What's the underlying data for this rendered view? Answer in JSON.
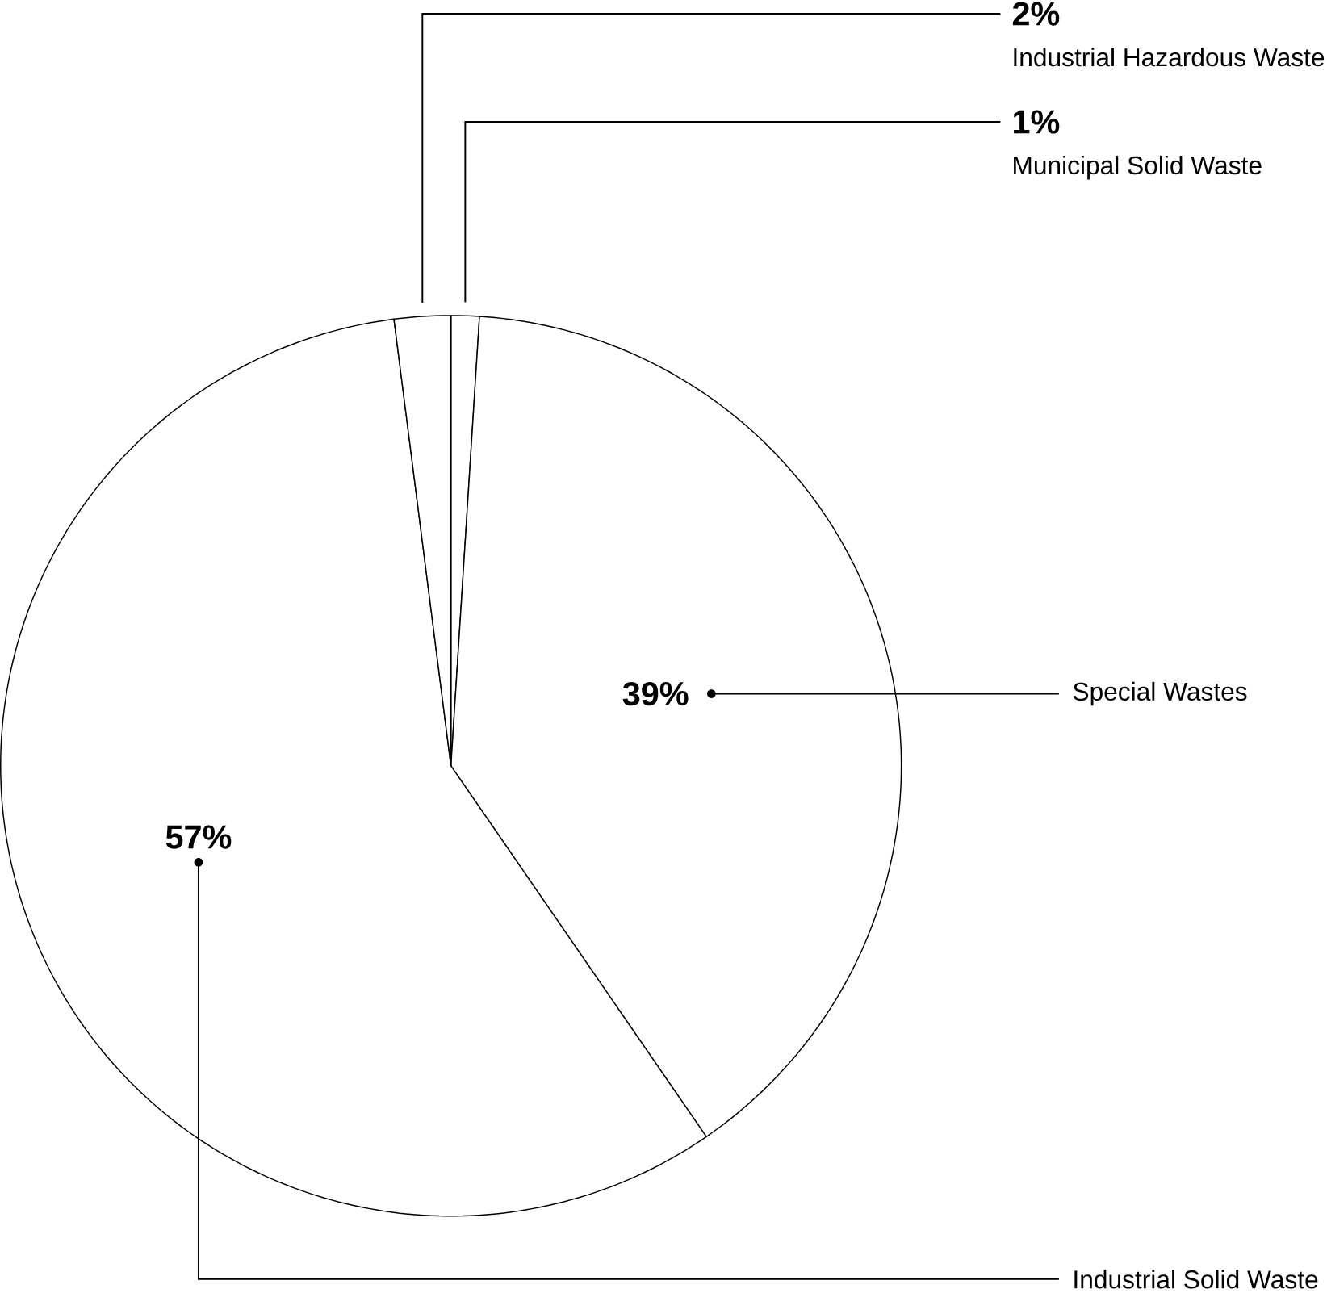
{
  "chart_data": {
    "type": "pie",
    "categories": [
      "Municipal Solid Waste",
      "Special Wastes",
      "Industrial Solid Waste",
      "Industrial Hazardous Waste"
    ],
    "values": [
      1,
      39,
      57,
      2
    ],
    "value_labels": [
      "1%",
      "39%",
      "57%",
      "2%"
    ],
    "colors": [
      "#ffffff",
      "#ffffff",
      "#ffffff",
      "#ffffff"
    ]
  }
}
